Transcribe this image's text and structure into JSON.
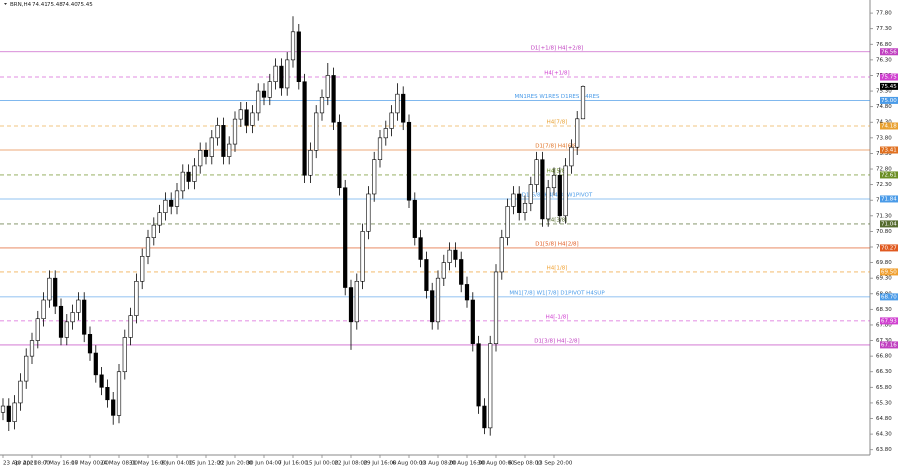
{
  "chart_data": {
    "type": "candlestick",
    "title": "BRN,H4",
    "header_values": [
      "74.41",
      "75.48",
      "74.40",
      "75.45"
    ],
    "categories": [
      "23 Apr 2021",
      null,
      null,
      null,
      null,
      "30 Apr 08:00",
      null,
      null,
      null,
      null,
      "7 May 16:00",
      null,
      null,
      null,
      null,
      "17 May 00:00",
      null,
      null,
      null,
      null,
      "24 May 08:00",
      null,
      null,
      null,
      null,
      "31 May 16:00",
      null,
      null,
      null,
      null,
      "8 Jun 04:00",
      null,
      null,
      null,
      null,
      "15 Jun 12:00",
      null,
      null,
      null,
      null,
      "22 Jun 20:00",
      null,
      null,
      null,
      null,
      "30 Jun 04:00",
      null,
      null,
      null,
      null,
      "7 Jul 16:00",
      null,
      null,
      null,
      null,
      "15 Jul 00:00",
      null,
      null,
      null,
      null,
      "22 Jul 08:00",
      null,
      null,
      null,
      null,
      "29 Jul 16:00",
      null,
      null,
      null,
      null,
      "6 Aug 00:00",
      null,
      null,
      null,
      null,
      "13 Aug 08:00",
      null,
      null,
      null,
      null,
      "20 Aug 16:00",
      null,
      null,
      null,
      null,
      "30 Aug 00:00",
      null,
      null,
      null,
      null,
      "6 Sep 08:00",
      null,
      null,
      null,
      null,
      "13 Sep 20:00",
      null,
      null,
      null,
      null,
      null
    ],
    "open": [
      65.0,
      65.2,
      64.7,
      65.3,
      66.0,
      66.8,
      67.3,
      68.0,
      68.6,
      69.3,
      68.4,
      67.4,
      67.9,
      68.2,
      68.6,
      67.5,
      66.9,
      66.2,
      65.8,
      65.4,
      64.9,
      66.3,
      67.4,
      68.1,
      69.2,
      70.0,
      70.6,
      71.0,
      71.4,
      71.8,
      71.6,
      72.1,
      72.7,
      72.4,
      72.9,
      73.4,
      73.2,
      73.8,
      74.2,
      73.2,
      73.6,
      74.4,
      74.7,
      74.2,
      74.6,
      75.3,
      75.1,
      75.6,
      76.1,
      75.4,
      76.3,
      77.2,
      75.6,
      72.6,
      73.4,
      74.6,
      75.1,
      75.8,
      74.3,
      72.2,
      69.0,
      67.9,
      69.2,
      70.8,
      72.0,
      73.1,
      73.8,
      74.1,
      74.6,
      75.2,
      74.3,
      71.8,
      70.6,
      69.9,
      68.9,
      67.9,
      69.3,
      69.8,
      70.2,
      69.9,
      69.1,
      68.6,
      67.2,
      65.2,
      64.5,
      67.2,
      69.5,
      70.6,
      71.6,
      72.0,
      71.4,
      71.7,
      72.3,
      73.1,
      71.2,
      72.2,
      72.6,
      71.3,
      72.9,
      73.5,
      74.41
    ],
    "high": [
      65.45,
      65.45,
      65.55,
      66.25,
      67.05,
      67.55,
      68.25,
      68.85,
      69.55,
      69.55,
      68.65,
      68.15,
      68.45,
      68.85,
      68.85,
      67.75,
      67.15,
      66.45,
      66.05,
      65.65,
      66.55,
      67.65,
      68.35,
      69.45,
      70.25,
      70.85,
      71.25,
      71.65,
      72.05,
      72.05,
      72.35,
      72.95,
      72.95,
      73.15,
      73.65,
      73.65,
      74.05,
      74.45,
      74.45,
      73.85,
      74.65,
      74.95,
      74.95,
      74.85,
      75.55,
      75.55,
      75.85,
      76.35,
      76.35,
      76.55,
      77.7,
      77.45,
      75.85,
      73.65,
      74.85,
      75.35,
      76.2,
      76.05,
      74.55,
      72.45,
      69.25,
      69.45,
      71.05,
      72.25,
      73.35,
      74.05,
      74.35,
      74.85,
      75.55,
      75.45,
      74.55,
      72.05,
      70.85,
      70.15,
      69.15,
      69.55,
      70.05,
      70.45,
      70.45,
      70.15,
      69.35,
      68.85,
      67.45,
      65.45,
      67.45,
      69.75,
      70.85,
      71.85,
      72.25,
      72.25,
      71.95,
      72.55,
      73.35,
      73.35,
      72.45,
      72.85,
      72.85,
      73.15,
      73.75,
      74.66,
      75.48
    ],
    "low": [
      64.75,
      64.4,
      64.45,
      65.05,
      65.75,
      66.55,
      67.05,
      67.75,
      68.35,
      68.15,
      67.15,
      67.15,
      67.65,
      67.95,
      67.25,
      66.65,
      65.95,
      65.55,
      65.15,
      64.6,
      64.65,
      66.05,
      67.15,
      67.85,
      68.95,
      69.75,
      70.35,
      70.75,
      71.15,
      71.35,
      71.35,
      71.85,
      72.15,
      72.15,
      72.65,
      72.95,
      72.95,
      73.55,
      72.95,
      72.95,
      73.35,
      74.15,
      73.95,
      73.95,
      74.35,
      74.85,
      74.85,
      75.35,
      75.15,
      75.15,
      76.05,
      75.35,
      72.35,
      72.35,
      73.15,
      74.35,
      74.85,
      74.05,
      71.95,
      68.75,
      67.0,
      67.65,
      68.95,
      70.55,
      71.75,
      72.85,
      73.55,
      73.85,
      74.35,
      74.05,
      71.55,
      70.35,
      69.65,
      68.65,
      67.65,
      67.65,
      69.05,
      69.55,
      69.65,
      68.85,
      68.35,
      66.95,
      64.95,
      64.3,
      64.25,
      66.95,
      69.25,
      70.35,
      71.35,
      71.15,
      71.15,
      71.45,
      72.05,
      70.95,
      70.95,
      71.95,
      71.05,
      71.05,
      72.65,
      73.25,
      74.4
    ],
    "close": [
      65.2,
      64.7,
      65.3,
      66.0,
      66.8,
      67.3,
      68.0,
      68.6,
      69.3,
      68.4,
      67.4,
      67.9,
      68.2,
      68.6,
      67.5,
      66.9,
      66.2,
      65.8,
      65.4,
      64.9,
      66.3,
      67.4,
      68.1,
      69.2,
      70.0,
      70.6,
      71.0,
      71.4,
      71.8,
      71.6,
      72.1,
      72.7,
      72.4,
      72.9,
      73.4,
      73.2,
      73.8,
      74.2,
      73.2,
      73.6,
      74.4,
      74.7,
      74.2,
      74.6,
      75.3,
      75.1,
      75.6,
      76.1,
      75.4,
      76.3,
      77.2,
      75.6,
      72.6,
      73.4,
      74.6,
      75.1,
      75.8,
      74.3,
      72.2,
      69.0,
      67.9,
      69.2,
      70.8,
      72.0,
      73.1,
      73.8,
      74.1,
      74.6,
      75.2,
      74.3,
      71.8,
      70.6,
      69.9,
      68.9,
      67.9,
      69.3,
      69.8,
      70.2,
      69.9,
      69.1,
      68.6,
      67.2,
      65.2,
      64.5,
      67.2,
      69.5,
      70.6,
      71.6,
      72.0,
      71.4,
      71.7,
      72.3,
      73.1,
      71.2,
      72.2,
      72.6,
      71.3,
      72.9,
      73.5,
      74.41,
      75.45
    ],
    "levels": [
      {
        "label": "D1[+1/8] H4[+2/8]",
        "value": 76.56,
        "value_label": "76.56",
        "color": "#c040c0",
        "dashed": false
      },
      {
        "label": "H4[+1/8]",
        "value": 75.75,
        "value_label": "75.75",
        "color": "#d040d0",
        "dashed": true
      },
      {
        "label": "MN1RES W1RES D1RES H4RES",
        "value": 75.0,
        "value_label": "75.00",
        "color": "#4a9be8",
        "dashed": false
      },
      {
        "label": "H4[7/8]",
        "value": 74.18,
        "value_label": "74.18",
        "color": "#e8a030",
        "dashed": true
      },
      {
        "label": "D1[7/8] H4[6/8]",
        "value": 73.41,
        "value_label": "73.41",
        "color": "#e07020",
        "dashed": false
      },
      {
        "label": "H4[5/8]",
        "value": 72.61,
        "value_label": "72.61",
        "color": "#6b8e23",
        "dashed": true
      },
      {
        "label": "D1[6/8] H4[4/8] W1PIVOT",
        "value": 71.84,
        "value_label": "71.84",
        "color": "#4a9be8",
        "dashed": false
      },
      {
        "label": "H4[3/8]",
        "value": 71.04,
        "value_label": "71.04",
        "color": "#556b2f",
        "dashed": true
      },
      {
        "label": "D1[5/8] H4[2/8]",
        "value": 70.27,
        "value_label": "70.27",
        "color": "#e05a20",
        "dashed": false
      },
      {
        "label": "H4[1/8]",
        "value": 69.5,
        "value_label": "69.50",
        "color": "#f0a030",
        "dashed": true
      },
      {
        "label": "MN1[7/8] W1[7/8] D1PIVOT H4SUP",
        "value": 68.7,
        "value_label": "68.70",
        "color": "#4a9be8",
        "dashed": false
      },
      {
        "label": "H4[-1/8]",
        "value": 67.93,
        "value_label": "67.93",
        "color": "#d040d0",
        "dashed": true
      },
      {
        "label": "D1[3/8] H4[-2/8]",
        "value": 67.16,
        "value_label": "67.16",
        "color": "#c040c0",
        "dashed": false
      }
    ],
    "ylim": [
      63.63,
      78.22
    ],
    "yticks": [
      {
        "value": 63.8,
        "label": "63.80"
      },
      {
        "value": 64.3,
        "label": "64.30"
      },
      {
        "value": 64.8,
        "label": "64.80"
      },
      {
        "value": 65.3,
        "label": "65.30"
      },
      {
        "value": 65.8,
        "label": "65.80"
      },
      {
        "value": 66.3,
        "label": "66.30"
      },
      {
        "value": 66.8,
        "label": "66.80"
      },
      {
        "value": 67.3,
        "label": "67.30"
      },
      {
        "value": 67.8,
        "label": "67.80"
      },
      {
        "value": 68.3,
        "label": "68.30"
      },
      {
        "value": 68.8,
        "label": "68.80"
      },
      {
        "value": 69.3,
        "label": "69.30"
      },
      {
        "value": 69.8,
        "label": "69.80"
      },
      {
        "value": 70.3,
        "label": "70.30"
      },
      {
        "value": 70.8,
        "label": "70.80"
      },
      {
        "value": 71.3,
        "label": "71.30"
      },
      {
        "value": 71.8,
        "label": "71.80"
      },
      {
        "value": 72.3,
        "label": "72.30"
      },
      {
        "value": 72.8,
        "label": "72.80"
      },
      {
        "value": 73.3,
        "label": "73.30"
      },
      {
        "value": 73.8,
        "label": "73.80"
      },
      {
        "value": 74.3,
        "label": "74.30"
      },
      {
        "value": 74.8,
        "label": "74.80"
      },
      {
        "value": 75.3,
        "label": "75.30"
      },
      {
        "value": 75.8,
        "label": "75.80"
      },
      {
        "value": 76.3,
        "label": "76.30"
      },
      {
        "value": 76.8,
        "label": "76.80"
      },
      {
        "value": 77.3,
        "label": "77.30"
      },
      {
        "value": 77.8,
        "label": "77.80"
      }
    ],
    "up_color": "#ffffff",
    "down_color": "#000000",
    "price_tag_color": "#000000"
  }
}
